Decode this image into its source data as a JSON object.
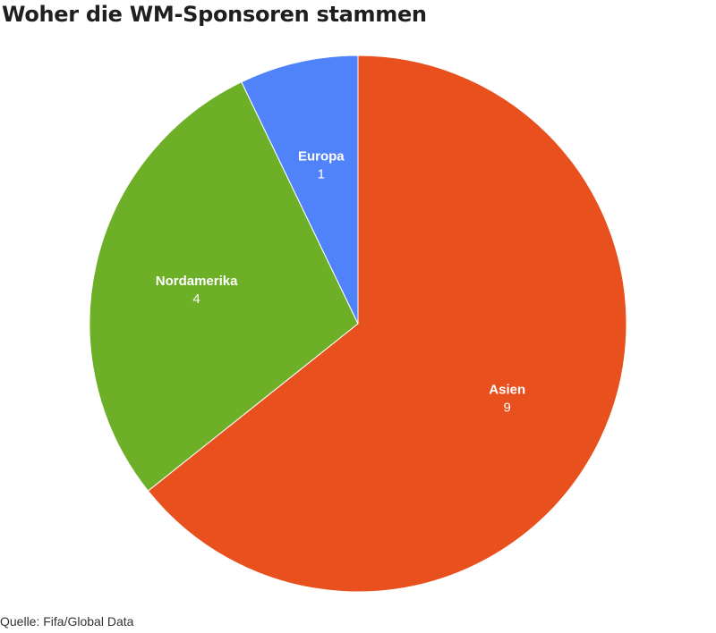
{
  "chart_data": {
    "type": "pie",
    "title": "Woher die WM-Sponsoren stammen",
    "source": "Quelle: Fifa/Global Data",
    "start_angle_deg": 0,
    "direction": "clockwise",
    "slices": [
      {
        "label": "Asien",
        "value": 9,
        "color": "#e8501e"
      },
      {
        "label": "Nordamerika",
        "value": 4,
        "color": "#6eaf28"
      },
      {
        "label": "Europa",
        "value": 1,
        "color": "#5082fa"
      }
    ]
  }
}
